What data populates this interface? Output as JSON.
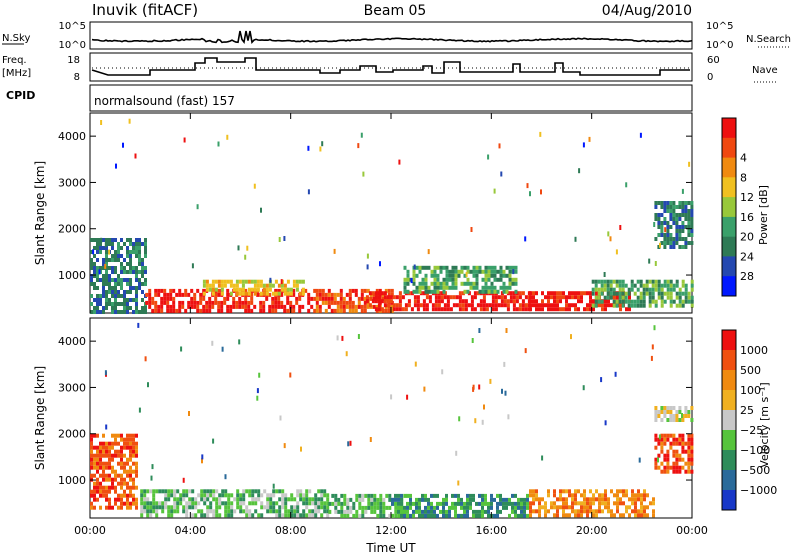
{
  "header": {
    "title": "Inuvik (fitACF)",
    "beam": "Beam 05",
    "date": "04/Aug/2010"
  },
  "top_panels": {
    "nsky_label": "N.Sky",
    "nsearch_label": "N.Search",
    "nsky_ticks": [
      "10^5",
      "10^0"
    ],
    "nsky_right_ticks": [
      "10^5",
      "10^0"
    ],
    "freq_label_1": "Freq.",
    "freq_label_2": "[MHz]",
    "freq_ticks": [
      "18",
      "8"
    ],
    "nave_label": "Nave",
    "nave_ticks": [
      "60",
      "0"
    ],
    "cpid_label": "CPID",
    "cpid_text": "normalsound (fast)  157"
  },
  "chart_data": [
    {
      "type": "heatmap",
      "name": "power",
      "ylabel": "Slant Range [km]",
      "xlabel": "",
      "x_ticks": [
        "00:00",
        "04:00",
        "08:00",
        "12:00",
        "16:00",
        "20:00",
        "00:00"
      ],
      "y_ticks": [
        1000,
        2000,
        3000,
        4000
      ],
      "ylim": [
        180,
        4500
      ],
      "xlim_hours": [
        0,
        24
      ],
      "colorbar": {
        "label": "Power [dB]",
        "ticks": [
          "4",
          "8",
          "12",
          "16",
          "20",
          "24",
          "28"
        ],
        "colors": [
          "#0018ff",
          "#2448b0",
          "#2e7a55",
          "#3aa06a",
          "#98c83a",
          "#f0c020",
          "#f08a10",
          "#f04810",
          "#ee1010"
        ]
      },
      "regions": [
        {
          "t0": 0.0,
          "t1": 2.2,
          "r0": 200,
          "r1": 1800,
          "level": 2
        },
        {
          "t0": 2.2,
          "t1": 9.0,
          "r0": 250,
          "r1": 700,
          "level": 8
        },
        {
          "t0": 4.5,
          "t1": 8.5,
          "r0": 600,
          "r1": 900,
          "level": 5
        },
        {
          "t0": 9.0,
          "t1": 12.0,
          "r0": 200,
          "r1": 700,
          "level": 7
        },
        {
          "t0": 11.0,
          "t1": 17.5,
          "r0": 250,
          "r1": 650,
          "level": 8
        },
        {
          "t0": 12.5,
          "t1": 17.0,
          "r0": 600,
          "r1": 1200,
          "level": 3
        },
        {
          "t0": 17.5,
          "t1": 21.5,
          "r0": 250,
          "r1": 650,
          "level": 8
        },
        {
          "t0": 20.0,
          "t1": 24.0,
          "r0": 300,
          "r1": 900,
          "level": 3
        },
        {
          "t0": 22.5,
          "t1": 24.0,
          "r0": 1600,
          "r1": 2600,
          "level": 2
        }
      ]
    },
    {
      "type": "heatmap",
      "name": "velocity",
      "ylabel": "Slant Range [km]",
      "xlabel": "Time UT",
      "x_ticks": [
        "00:00",
        "04:00",
        "08:00",
        "12:00",
        "16:00",
        "20:00",
        "00:00"
      ],
      "y_ticks": [
        1000,
        2000,
        3000,
        4000
      ],
      "ylim": [
        180,
        4500
      ],
      "xlim_hours": [
        0,
        24
      ],
      "colorbar": {
        "label": "Velocity  [m s⁻¹]",
        "ticks": [
          "1000",
          "500",
          "100",
          "25",
          "−25",
          "−100",
          "−500",
          "−1000"
        ],
        "colors": [
          "#1838c8",
          "#2a6a9a",
          "#2e8c5a",
          "#56c43c",
          "#c8c8c8",
          "#f0b020",
          "#f08a10",
          "#f05010",
          "#ee1010"
        ]
      },
      "regions": [
        {
          "t0": 0.0,
          "t1": 1.8,
          "r0": 400,
          "r1": 2000,
          "level": 7
        },
        {
          "t0": 2.0,
          "t1": 9.5,
          "r0": 250,
          "r1": 800,
          "level": 3
        },
        {
          "t0": 9.5,
          "t1": 12.5,
          "r0": 200,
          "r1": 700,
          "level": 3
        },
        {
          "t0": 12.0,
          "t1": 17.5,
          "r0": 250,
          "r1": 700,
          "level": 2
        },
        {
          "t0": 17.5,
          "t1": 22.5,
          "r0": 250,
          "r1": 800,
          "level": 6
        },
        {
          "t0": 22.5,
          "t1": 24.0,
          "r0": 1200,
          "r1": 2000,
          "level": 7
        },
        {
          "t0": 22.5,
          "t1": 24.0,
          "r0": 2300,
          "r1": 2600,
          "level": 4
        }
      ]
    }
  ]
}
